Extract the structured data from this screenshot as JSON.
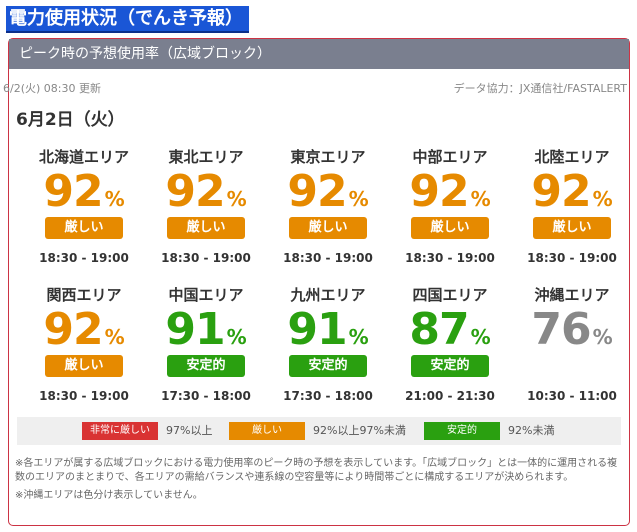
{
  "page_title": "電力使用状況（でんき予報）",
  "card": {
    "header": "ピーク時の予想使用率（広域ブロック）",
    "updated": "6/2(火) 08:30 更新",
    "credit": "データ協力：JX通信社/FASTALERT",
    "date": "6月2日（火）",
    "pct_symbol": "%"
  },
  "areas": [
    {
      "name": "北海道エリア",
      "value": "92",
      "status": "厳しい",
      "time": "18:30 - 19:00",
      "color": "#e68a00"
    },
    {
      "name": "東北エリア",
      "value": "92",
      "status": "厳しい",
      "time": "18:30 - 19:00",
      "color": "#e68a00"
    },
    {
      "name": "東京エリア",
      "value": "92",
      "status": "厳しい",
      "time": "18:30 - 19:00",
      "color": "#e68a00"
    },
    {
      "name": "中部エリア",
      "value": "92",
      "status": "厳しい",
      "time": "18:30 - 19:00",
      "color": "#e68a00"
    },
    {
      "name": "北陸エリア",
      "value": "92",
      "status": "厳しい",
      "time": "18:30 - 19:00",
      "color": "#e68a00"
    },
    {
      "name": "関西エリア",
      "value": "92",
      "status": "厳しい",
      "time": "18:30 - 19:00",
      "color": "#e68a00"
    },
    {
      "name": "中国エリア",
      "value": "91",
      "status": "安定的",
      "time": "17:30 - 18:00",
      "color": "#2aa010"
    },
    {
      "name": "九州エリア",
      "value": "91",
      "status": "安定的",
      "time": "17:30 - 18:00",
      "color": "#2aa010"
    },
    {
      "name": "四国エリア",
      "value": "87",
      "status": "安定的",
      "time": "21:00 - 21:30",
      "color": "#2aa010"
    },
    {
      "name": "沖縄エリア",
      "value": "76",
      "status": "",
      "time": "10:30 - 11:00",
      "color": "#888888"
    }
  ],
  "legend": [
    {
      "label": "非常に厳しい",
      "desc": "97%以上",
      "color": "#d93333"
    },
    {
      "label": "厳しい",
      "desc": "92%以上97%未満",
      "color": "#e68a00"
    },
    {
      "label": "安定的",
      "desc": "92%未満",
      "color": "#2aa010"
    }
  ],
  "notes": [
    "※各エリアが属する広域ブロックにおける電力使用率のピーク時の予想を表示しています。「広域ブロック」とは一体的に運用される複数のエリアのまとまりで、各エリアの需給バランスや連系線の空容量等により時間帯ごとに構成するエリアが決められます。",
    "※沖縄エリアは色分け表示していません。"
  ]
}
